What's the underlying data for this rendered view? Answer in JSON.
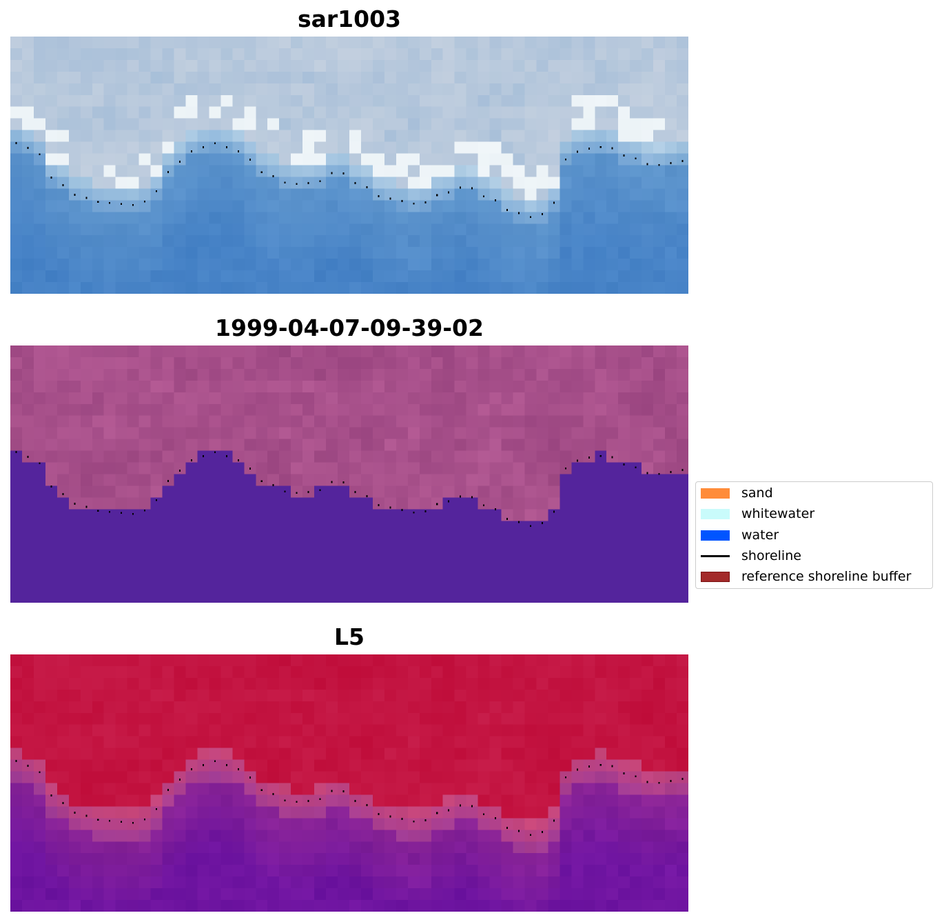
{
  "panels": [
    {
      "title": "sar1003",
      "style": "true-color"
    },
    {
      "title": "1999-04-07-09-39-02",
      "style": "classified"
    },
    {
      "title": "L5",
      "style": "index"
    }
  ],
  "legend": {
    "items": [
      {
        "label": "sand",
        "color": "#ff8c3a",
        "kind": "patch"
      },
      {
        "label": "whitewater",
        "color": "#c9fbfb",
        "kind": "patch"
      },
      {
        "label": "water",
        "color": "#0055ff",
        "kind": "patch"
      },
      {
        "label": "shoreline",
        "color": "#000000",
        "kind": "line"
      },
      {
        "label": "reference shoreline buffer",
        "color": "#a32a2a",
        "kind": "patch"
      }
    ]
  },
  "colors": {
    "water_class": "#54249c",
    "index_low": "#6e1aa0",
    "index_high": "#bd0838",
    "shoreline_dots": "#000000"
  }
}
